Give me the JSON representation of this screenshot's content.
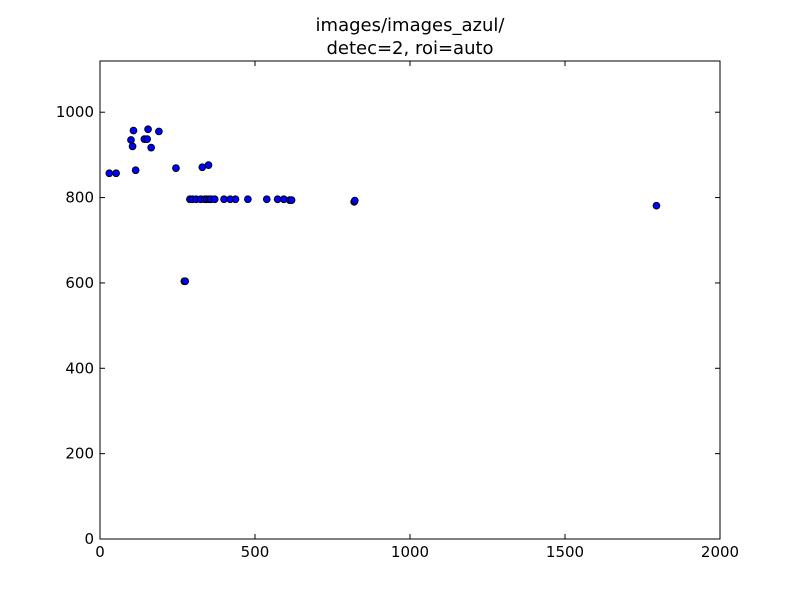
{
  "chart_data": {
    "type": "scatter",
    "title_lines": [
      "images/images_azul/",
      "detec=2, roi=auto"
    ],
    "xlabel": "",
    "ylabel": "",
    "xlim": [
      0,
      2000
    ],
    "ylim": [
      0,
      1120
    ],
    "x_ticks": [
      0,
      500,
      1000,
      1500,
      2000
    ],
    "y_ticks": [
      0,
      200,
      400,
      600,
      800,
      1000
    ],
    "grid": false,
    "legend": "none",
    "marker_color": "#0000ff",
    "marker_edge_color": "#000000",
    "series": [
      {
        "points": [
          [
            30,
            857
          ],
          [
            52,
            857
          ],
          [
            100,
            935
          ],
          [
            105,
            920
          ],
          [
            108,
            957
          ],
          [
            115,
            864
          ],
          [
            143,
            937
          ],
          [
            152,
            937
          ],
          [
            155,
            960
          ],
          [
            165,
            917
          ],
          [
            190,
            955
          ],
          [
            245,
            869
          ],
          [
            272,
            604
          ],
          [
            275,
            604
          ],
          [
            290,
            796
          ],
          [
            298,
            796
          ],
          [
            310,
            796
          ],
          [
            325,
            796
          ],
          [
            330,
            871
          ],
          [
            338,
            796
          ],
          [
            345,
            796
          ],
          [
            350,
            876
          ],
          [
            352,
            796
          ],
          [
            358,
            796
          ],
          [
            370,
            796
          ],
          [
            400,
            796
          ],
          [
            420,
            796
          ],
          [
            437,
            796
          ],
          [
            477,
            796
          ],
          [
            538,
            796
          ],
          [
            573,
            796
          ],
          [
            593,
            796
          ],
          [
            612,
            794
          ],
          [
            618,
            794
          ],
          [
            820,
            790
          ],
          [
            822,
            793
          ],
          [
            1795,
            781
          ]
        ]
      }
    ]
  }
}
